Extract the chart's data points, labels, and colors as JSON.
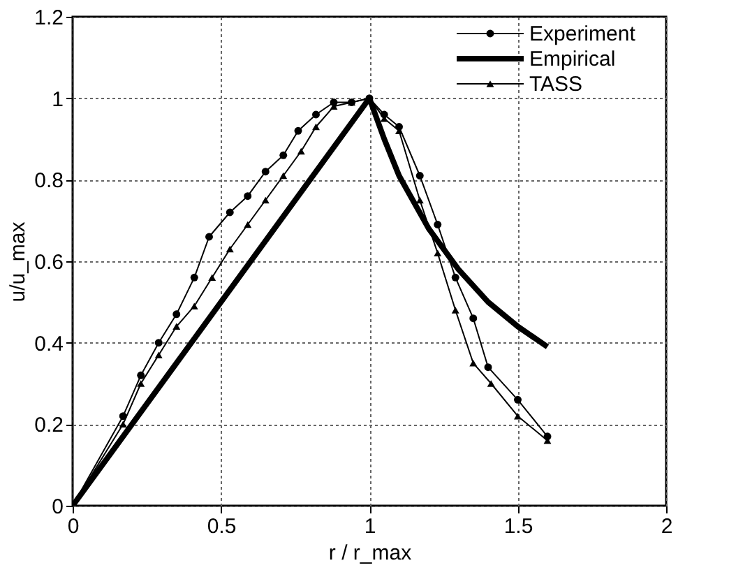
{
  "chart_data": {
    "type": "line",
    "xlabel": "r / r_max",
    "ylabel": "u/u_max",
    "xlim": [
      0,
      2
    ],
    "xticks": [
      0,
      0.5,
      1,
      1.5,
      2
    ],
    "ylim": [
      0,
      1.2
    ],
    "yticks": [
      0,
      0.2,
      0.4,
      0.6,
      0.8,
      1,
      1.2
    ],
    "grid": true,
    "legend": "top right",
    "line_style": "solid",
    "series": [
      {
        "name": "Experiment",
        "color": "#000000",
        "marker": "circle",
        "x": [
          0,
          0.17,
          0.23,
          0.29,
          0.35,
          0.41,
          0.46,
          0.53,
          0.59,
          0.65,
          0.71,
          0.76,
          0.82,
          0.88,
          0.94,
          1.0,
          1.05,
          1.1,
          1.17,
          1.23,
          1.29,
          1.35,
          1.4,
          1.5,
          1.6
        ],
        "values": [
          0,
          0.22,
          0.32,
          0.4,
          0.47,
          0.56,
          0.66,
          0.72,
          0.76,
          0.82,
          0.86,
          0.92,
          0.96,
          0.99,
          0.99,
          1.0,
          0.96,
          0.93,
          0.81,
          0.69,
          0.56,
          0.46,
          0.34,
          0.26,
          0.17
        ]
      },
      {
        "name": "Empirical",
        "color": "#000000",
        "marker": "none",
        "x": [
          0,
          1,
          1.05,
          1.1,
          1.2,
          1.3,
          1.4,
          1.5,
          1.6
        ],
        "values": [
          0,
          1,
          0.9,
          0.81,
          0.68,
          0.58,
          0.5,
          0.44,
          0.39
        ]
      },
      {
        "name": "TASS",
        "color": "#000000",
        "marker": "triangle",
        "x": [
          0,
          0.17,
          0.23,
          0.29,
          0.35,
          0.41,
          0.47,
          0.53,
          0.59,
          0.65,
          0.71,
          0.77,
          0.82,
          0.88,
          0.94,
          1.0,
          1.05,
          1.1,
          1.17,
          1.23,
          1.29,
          1.35,
          1.41,
          1.5,
          1.6
        ],
        "values": [
          0,
          0.2,
          0.3,
          0.37,
          0.44,
          0.49,
          0.56,
          0.63,
          0.69,
          0.75,
          0.81,
          0.87,
          0.93,
          0.98,
          0.99,
          1.0,
          0.95,
          0.92,
          0.75,
          0.62,
          0.48,
          0.35,
          0.3,
          0.22,
          0.16
        ]
      }
    ]
  }
}
